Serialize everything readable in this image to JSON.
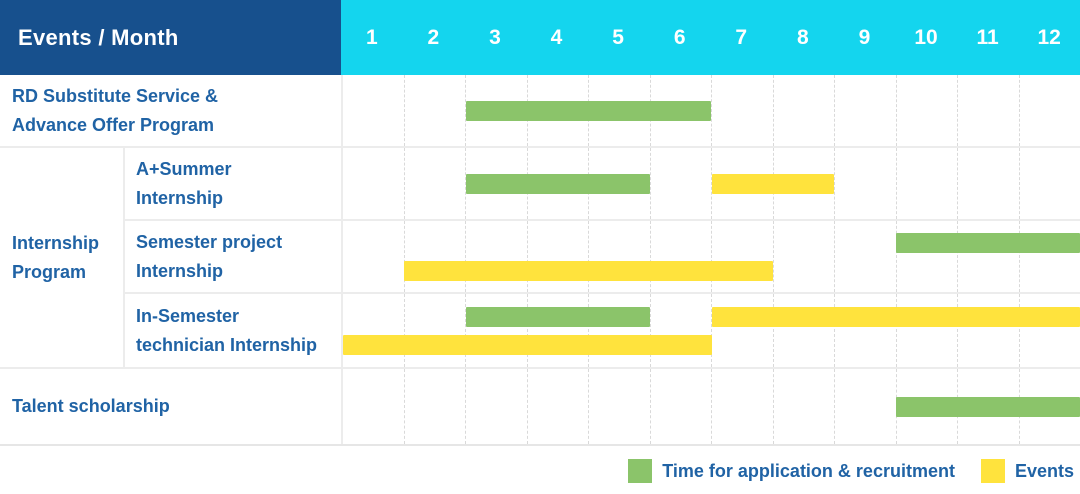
{
  "header": {
    "title": "Events / Month",
    "months": [
      "1",
      "2",
      "3",
      "4",
      "5",
      "6",
      "7",
      "8",
      "9",
      "10",
      "11",
      "12"
    ]
  },
  "group": {
    "label": "Internship Program",
    "label_lines": [
      "Internship",
      "Program"
    ]
  },
  "rows": [
    {
      "id": "rd-substitute-service",
      "label": "RD Substitute Service & Advance Offer Program",
      "label_lines": [
        "RD Substitute Service &",
        "Advance Offer Program"
      ],
      "lines": [
        [
          {
            "type": "application",
            "start": 3,
            "end": 6
          }
        ]
      ]
    },
    {
      "id": "a-plus-summer-internship",
      "label": "A+Summer Internship",
      "label_lines": [
        "A+Summer",
        "Internship"
      ],
      "lines": [
        [
          {
            "type": "application",
            "start": 3,
            "end": 5
          },
          {
            "type": "event",
            "start": 7,
            "end": 8
          }
        ]
      ]
    },
    {
      "id": "semester-project-internship",
      "label": "Semester project Internship",
      "label_lines": [
        "Semester project",
        "Internship"
      ],
      "lines": [
        [
          {
            "type": "application",
            "start": 10,
            "end": 12
          }
        ],
        [
          {
            "type": "event",
            "start": 2,
            "end": 7
          }
        ]
      ]
    },
    {
      "id": "in-semester-technician-internship",
      "label": "In-Semester technician Internship",
      "label_lines": [
        "In-Semester",
        "technician Internship"
      ],
      "lines": [
        [
          {
            "type": "application",
            "start": 3,
            "end": 5
          },
          {
            "type": "event",
            "start": 7,
            "end": 12
          }
        ],
        [
          {
            "type": "event",
            "start": 1,
            "end": 6
          }
        ]
      ]
    },
    {
      "id": "talent-scholarship",
      "label": "Talent scholarship",
      "label_lines": [
        "Talent scholarship"
      ],
      "lines": [
        [
          {
            "type": "application",
            "start": 10,
            "end": 12
          }
        ]
      ]
    }
  ],
  "legend": {
    "items": [
      {
        "id": "application",
        "label": "Time for application & recruitment",
        "color": "#8bc46a"
      },
      {
        "id": "event",
        "label": "Events",
        "color": "#ffe33d"
      }
    ]
  },
  "colors": {
    "header_bg": "#17508d",
    "months_bg": "#14d5ee",
    "application_green": "#8bc46a",
    "event_yellow": "#ffe33d",
    "label_text": "#2063a5",
    "header_text": "#ffffff",
    "grid_dash": "#d9d9d9",
    "row_border": "#ececec"
  },
  "chart_data": {
    "type": "gantt",
    "title": "Events / Month",
    "x_axis": {
      "unit": "month",
      "range": [
        1,
        12
      ],
      "ticks": [
        "1",
        "2",
        "3",
        "4",
        "5",
        "6",
        "7",
        "8",
        "9",
        "10",
        "11",
        "12"
      ]
    },
    "legend": [
      {
        "series": "Time for application & recruitment",
        "color": "#8bc46a"
      },
      {
        "series": "Events",
        "color": "#ffe33d"
      }
    ],
    "legend_position": "bottom-right",
    "grid": true,
    "tasks": [
      {
        "task": "RD Substitute Service & Advance Offer Program",
        "group": null,
        "bars": [
          {
            "series": "Time for application & recruitment",
            "start_month": 3,
            "end_month": 6
          }
        ]
      },
      {
        "task": "A+Summer Internship",
        "group": "Internship Program",
        "bars": [
          {
            "series": "Time for application & recruitment",
            "start_month": 3,
            "end_month": 5
          },
          {
            "series": "Events",
            "start_month": 7,
            "end_month": 8
          }
        ]
      },
      {
        "task": "Semester project Internship",
        "group": "Internship Program",
        "bars": [
          {
            "series": "Time for application & recruitment",
            "start_month": 10,
            "end_month": 12
          },
          {
            "series": "Events",
            "start_month": 2,
            "end_month": 7
          }
        ]
      },
      {
        "task": "In-Semester technician Internship",
        "group": "Internship Program",
        "bars": [
          {
            "series": "Time for application & recruitment",
            "start_month": 3,
            "end_month": 5
          },
          {
            "series": "Events",
            "start_month": 7,
            "end_month": 12
          },
          {
            "series": "Events",
            "start_month": 1,
            "end_month": 6
          }
        ]
      },
      {
        "task": "Talent scholarship",
        "group": null,
        "bars": [
          {
            "series": "Time for application & recruitment",
            "start_month": 10,
            "end_month": 12
          }
        ]
      }
    ]
  }
}
